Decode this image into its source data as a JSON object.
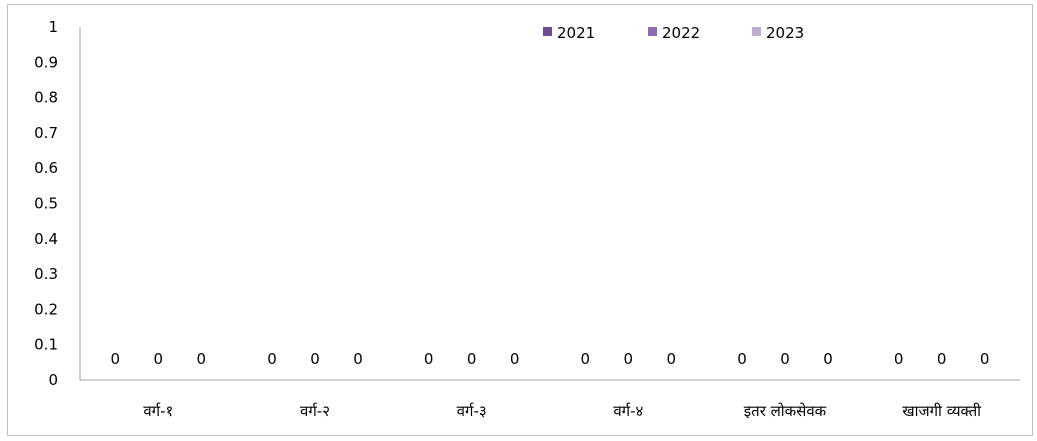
{
  "chart_data": {
    "type": "bar",
    "categories": [
      "वर्ग-१",
      "वर्ग-२",
      "वर्ग-३",
      "वर्ग-४",
      "इतर लोकसेवक",
      "खाजगी व्यक्ती"
    ],
    "series": [
      {
        "name": "2021",
        "values": [
          0,
          0,
          0,
          0,
          0,
          0
        ],
        "color": "#6a4e8f"
      },
      {
        "name": "2022",
        "values": [
          0,
          0,
          0,
          0,
          0,
          0
        ],
        "color": "#8c6bb1"
      },
      {
        "name": "2023",
        "values": [
          0,
          0,
          0,
          0,
          0,
          0
        ],
        "color": "#bcaed3"
      }
    ],
    "yticks": [
      "0",
      "0.1",
      "0.2",
      "0.3",
      "0.4",
      "0.5",
      "0.6",
      "0.7",
      "0.8",
      "0.9",
      "1"
    ],
    "ylim": [
      0,
      1
    ],
    "grid": false,
    "legend_position": "top-right",
    "data_labels": true
  }
}
